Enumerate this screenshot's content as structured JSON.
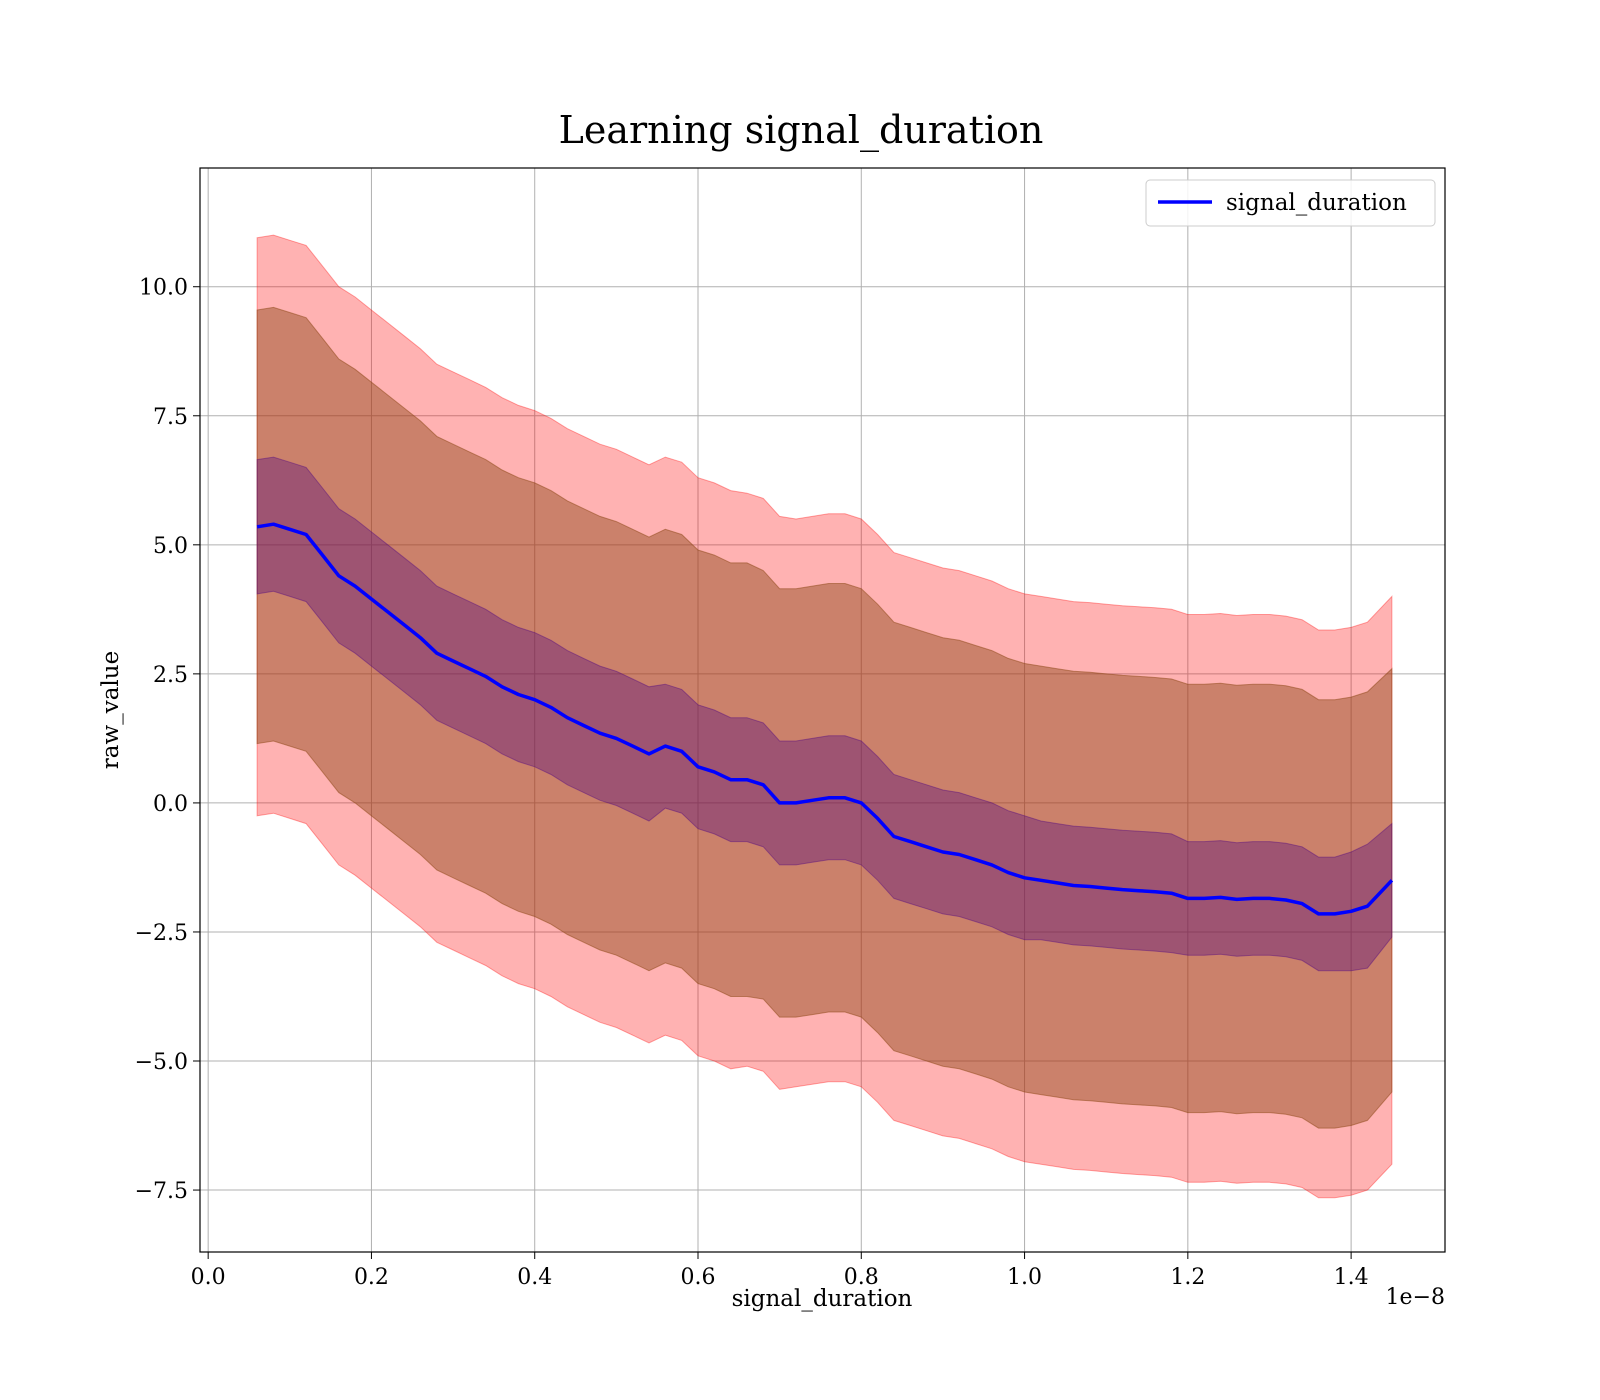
{
  "chart_data": {
    "type": "line",
    "title": "Learning signal_duration",
    "xlabel": "signal_duration",
    "ylabel": "raw_value",
    "x_offset_label": "1e−8",
    "xlim": [
      -0.01,
      1.515
    ],
    "ylim": [
      -8.7,
      12.3
    ],
    "x_ticks": [
      0.0,
      0.2,
      0.4,
      0.6,
      0.8,
      1.0,
      1.2,
      1.4
    ],
    "x_tick_labels": [
      "0.0",
      "0.2",
      "0.4",
      "0.6",
      "0.8",
      "1.0",
      "1.2",
      "1.4"
    ],
    "y_ticks": [
      -7.5,
      -5.0,
      -2.5,
      0.0,
      2.5,
      5.0,
      7.5,
      10.0
    ],
    "y_tick_labels": [
      "−7.5",
      "−5.0",
      "−2.5",
      "0.0",
      "2.5",
      "5.0",
      "7.5",
      "10.0"
    ],
    "grid": true,
    "legend_position": "top-right",
    "colors": {
      "line": "#0000ff",
      "band_outer": "#ff0000",
      "band_mid": "#8b4513",
      "band_inner": "#4b0082",
      "grid": "#b0b0b0"
    },
    "series": [
      {
        "name": "signal_duration",
        "x": [
          0.06,
          0.08,
          0.1,
          0.12,
          0.14,
          0.16,
          0.18,
          0.2,
          0.22,
          0.24,
          0.26,
          0.28,
          0.3,
          0.32,
          0.34,
          0.36,
          0.38,
          0.4,
          0.42,
          0.44,
          0.46,
          0.48,
          0.5,
          0.52,
          0.54,
          0.56,
          0.58,
          0.6,
          0.62,
          0.64,
          0.66,
          0.68,
          0.7,
          0.72,
          0.74,
          0.76,
          0.78,
          0.8,
          0.82,
          0.84,
          0.86,
          0.88,
          0.9,
          0.92,
          0.94,
          0.96,
          0.98,
          1.0,
          1.02,
          1.04,
          1.06,
          1.08,
          1.1,
          1.12,
          1.14,
          1.16,
          1.18,
          1.2,
          1.22,
          1.24,
          1.26,
          1.28,
          1.3,
          1.32,
          1.34,
          1.36,
          1.38,
          1.4,
          1.42,
          1.45
        ],
        "y": [
          5.35,
          5.4,
          5.3,
          5.2,
          4.8,
          4.4,
          4.2,
          3.95,
          3.7,
          3.45,
          3.2,
          2.9,
          2.75,
          2.6,
          2.45,
          2.25,
          2.1,
          2.0,
          1.85,
          1.65,
          1.5,
          1.35,
          1.25,
          1.1,
          0.95,
          1.1,
          1.0,
          0.7,
          0.6,
          0.45,
          0.45,
          0.35,
          0.0,
          0.0,
          0.05,
          0.1,
          0.1,
          0.0,
          -0.3,
          -0.65,
          -0.75,
          -0.85,
          -0.95,
          -1.0,
          -1.1,
          -1.2,
          -1.35,
          -1.45,
          -1.5,
          -1.55,
          -1.6,
          -1.62,
          -1.65,
          -1.68,
          -1.7,
          -1.72,
          -1.75,
          -1.85,
          -1.85,
          -1.83,
          -1.87,
          -1.85,
          -1.85,
          -1.88,
          -1.95,
          -2.15,
          -2.15,
          -2.1,
          -2.0,
          -1.5
        ],
        "inner_band": [
          1.3,
          1.3,
          1.3,
          1.3,
          1.3,
          1.3,
          1.3,
          1.3,
          1.3,
          1.3,
          1.3,
          1.3,
          1.3,
          1.3,
          1.3,
          1.3,
          1.3,
          1.3,
          1.3,
          1.3,
          1.3,
          1.3,
          1.3,
          1.3,
          1.3,
          1.2,
          1.2,
          1.2,
          1.2,
          1.2,
          1.2,
          1.2,
          1.2,
          1.2,
          1.2,
          1.2,
          1.2,
          1.2,
          1.2,
          1.2,
          1.2,
          1.2,
          1.2,
          1.2,
          1.2,
          1.2,
          1.2,
          1.2,
          1.15,
          1.15,
          1.15,
          1.15,
          1.15,
          1.15,
          1.15,
          1.15,
          1.15,
          1.1,
          1.1,
          1.1,
          1.1,
          1.1,
          1.1,
          1.1,
          1.1,
          1.1,
          1.1,
          1.15,
          1.2,
          1.1
        ],
        "mid_band": [
          4.2,
          4.2,
          4.2,
          4.2,
          4.2,
          4.2,
          4.2,
          4.2,
          4.2,
          4.2,
          4.2,
          4.2,
          4.2,
          4.2,
          4.2,
          4.2,
          4.2,
          4.2,
          4.2,
          4.2,
          4.2,
          4.2,
          4.2,
          4.2,
          4.2,
          4.2,
          4.2,
          4.2,
          4.2,
          4.2,
          4.2,
          4.15,
          4.15,
          4.15,
          4.15,
          4.15,
          4.15,
          4.15,
          4.15,
          4.15,
          4.15,
          4.15,
          4.15,
          4.15,
          4.15,
          4.15,
          4.15,
          4.15,
          4.15,
          4.15,
          4.15,
          4.15,
          4.15,
          4.15,
          4.15,
          4.15,
          4.15,
          4.15,
          4.15,
          4.15,
          4.15,
          4.15,
          4.15,
          4.15,
          4.15,
          4.15,
          4.15,
          4.15,
          4.15,
          4.1
        ],
        "outer_band": [
          5.6,
          5.6,
          5.6,
          5.6,
          5.6,
          5.6,
          5.6,
          5.6,
          5.6,
          5.6,
          5.6,
          5.6,
          5.6,
          5.6,
          5.6,
          5.6,
          5.6,
          5.6,
          5.6,
          5.6,
          5.6,
          5.6,
          5.6,
          5.6,
          5.6,
          5.6,
          5.6,
          5.6,
          5.6,
          5.6,
          5.55,
          5.55,
          5.55,
          5.5,
          5.5,
          5.5,
          5.5,
          5.5,
          5.5,
          5.5,
          5.5,
          5.5,
          5.5,
          5.5,
          5.5,
          5.5,
          5.5,
          5.5,
          5.5,
          5.5,
          5.5,
          5.5,
          5.5,
          5.5,
          5.5,
          5.5,
          5.5,
          5.5,
          5.5,
          5.5,
          5.5,
          5.5,
          5.5,
          5.5,
          5.5,
          5.5,
          5.5,
          5.5,
          5.5,
          5.5
        ]
      }
    ]
  }
}
